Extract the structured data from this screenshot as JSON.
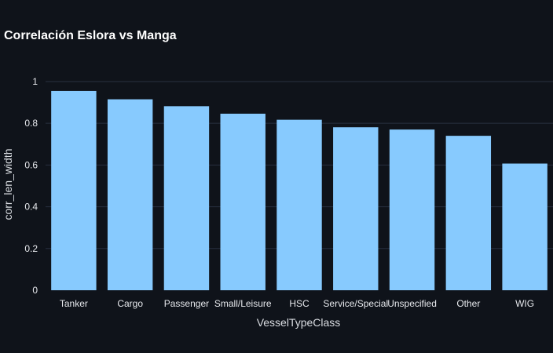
{
  "chart_data": {
    "type": "bar",
    "title": "Correlación Eslora vs Manga",
    "xlabel": "VesselTypeClass",
    "ylabel": "corr_len_width",
    "categories": [
      "Tanker",
      "Cargo",
      "Passenger",
      "Small/Leisure",
      "HSC",
      "Service/Special",
      "Unspecified",
      "Other",
      "WIG"
    ],
    "values": [
      0.955,
      0.915,
      0.882,
      0.846,
      0.817,
      0.781,
      0.77,
      0.74,
      0.607
    ],
    "ylim": [
      0,
      1.06
    ],
    "yticks": [
      0,
      0.2,
      0.4,
      0.6,
      0.8,
      1
    ],
    "ytick_labels": [
      "0",
      "0.2",
      "0.4",
      "0.6",
      "0.8",
      "1"
    ],
    "grid": true,
    "bar_color": "#87cafe",
    "background": "#0f131a"
  }
}
